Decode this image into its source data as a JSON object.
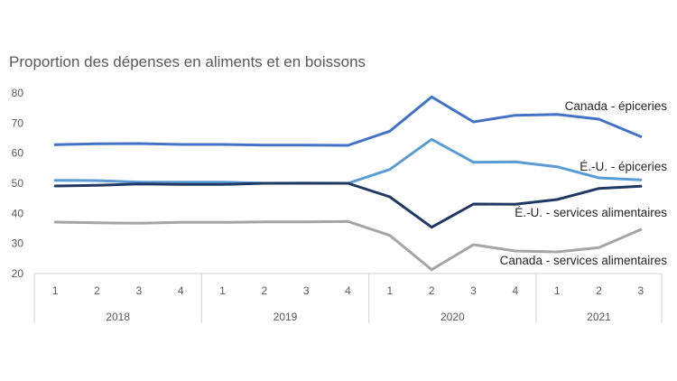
{
  "chart_data": {
    "type": "line",
    "title": "Proportion des dépenses en aliments et en boissons",
    "ylim": [
      20,
      80
    ],
    "yticks": [
      20,
      30,
      40,
      50,
      60,
      70,
      80
    ],
    "x_quarters": [
      "1",
      "2",
      "3",
      "4",
      "1",
      "2",
      "3",
      "4",
      "1",
      "2",
      "3",
      "4",
      "1",
      "2",
      "3"
    ],
    "x_years": [
      {
        "label": "2018",
        "count": 4
      },
      {
        "label": "2019",
        "count": 4
      },
      {
        "label": "2020",
        "count": 4
      },
      {
        "label": "2021",
        "count": 3
      }
    ],
    "grid": false,
    "series": [
      {
        "name": "Canada - épiceries",
        "color": "#4472C4",
        "values": [
          62.8,
          63.1,
          63.2,
          62.9,
          62.9,
          62.7,
          62.7,
          62.6,
          67.3,
          78.7,
          70.4,
          72.6,
          72.9,
          71.3,
          65.5
        ]
      },
      {
        "name": "É.-U. - épiceries",
        "color": "#5B9BD5",
        "values": [
          51.0,
          50.9,
          50.4,
          50.4,
          50.4,
          50.0,
          50.1,
          50.0,
          54.6,
          64.6,
          57.0,
          57.1,
          55.5,
          51.8,
          51.1
        ]
      },
      {
        "name": "É.-U. - services alimentaires",
        "color": "#1F3864",
        "values": [
          49.1,
          49.3,
          49.8,
          49.6,
          49.6,
          50.0,
          50.0,
          50.0,
          45.5,
          35.4,
          43.1,
          43.0,
          44.6,
          48.3,
          49.0
        ]
      },
      {
        "name": "Canada - services alimentaires",
        "color": "#A5A5A5",
        "values": [
          37.1,
          36.9,
          36.7,
          37.0,
          37.0,
          37.2,
          37.2,
          37.3,
          32.7,
          21.3,
          29.6,
          27.5,
          27.2,
          28.6,
          34.6
        ]
      }
    ]
  }
}
